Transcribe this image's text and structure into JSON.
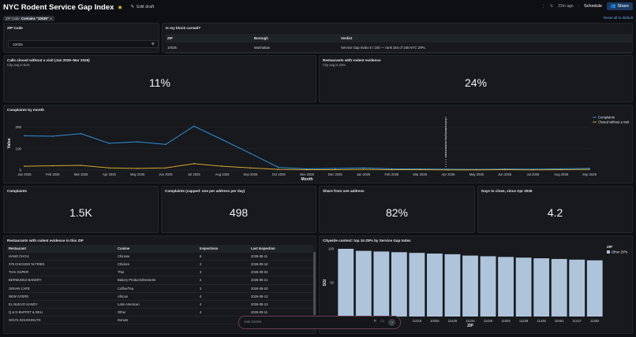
{
  "header": {
    "title": "NYC Rodent Service Gap Index",
    "edit_label": "Edit draft",
    "updated": "22m ago",
    "schedule_label": "Schedule",
    "share_label": "Share"
  },
  "filters": {
    "chip_label": "ZIP Code:",
    "chip_value": "Contains \"10035\"",
    "reset_label": "Reset all to default"
  },
  "zip_panel": {
    "title": "ZIP Code",
    "value": "10035"
  },
  "block_panel": {
    "title": "Is my block cursed?",
    "columns": [
      "ZIP",
      "Borough",
      "Verdict"
    ],
    "rows": [
      [
        "10035",
        "Manhattan",
        "Service Gap Index 5 / 100 — rank 164 of 165 NYC ZIPs."
      ]
    ]
  },
  "calls_panel": {
    "title": "Calls closed without a visit (Jan 2025–Mar 2026)",
    "sub": "City avg is 61%",
    "value": "11%"
  },
  "rest_rate_panel": {
    "title": "Restaurants with rodent evidence",
    "sub": "City avg is 23%",
    "value": "24%"
  },
  "complaints_chart": {
    "title": "Complaints by month",
    "annotation": "Anti-rodent plan announced"
  },
  "kpis": [
    {
      "title": "Complaints",
      "value": "1.5K"
    },
    {
      "title": "Complaints (capped: one per address per day)",
      "value": "498"
    },
    {
      "title": "Share from one address",
      "value": "82%"
    },
    {
      "title": "Days to close, since Apr 2026",
      "value": "4.2"
    }
  ],
  "restaurants": {
    "title": "Restaurants with rodent evidence in this ZIP",
    "columns": [
      "Restaurant",
      "Cuisine",
      "Inspections",
      "Last Inspection"
    ],
    "rows": [
      [
        "HANG CHOU",
        "Chinese",
        "6",
        "2026-08-11"
      ],
      [
        "375 CHICKEN 'N FRIES",
        "Chicken",
        "2",
        "2026-09-10"
      ],
      [
        "THAI SUPER",
        "Thai",
        "3",
        "2026-09-03"
      ],
      [
        "BERMUDEZ BAKERY",
        "Bakery Products/Desserts",
        "2",
        "2026-06-21"
      ],
      [
        "GINIAN CAFE",
        "Coffee/Tea",
        "3",
        "2026-08-20"
      ],
      [
        "NEW IVOIRE",
        "African",
        "4",
        "2026-08-13"
      ],
      [
        "EL NUEVO SANDY",
        "Latin American",
        "4",
        "2026-08-13"
      ],
      [
        "Q & N BUFFET & DELI",
        "Other",
        "4",
        "2026-09-11"
      ],
      [
        "GIGI'S DOUGHNUTS",
        "Donuts",
        "",
        ""
      ]
    ]
  },
  "ask": {
    "placeholder": "Ask Genie"
  },
  "chart_data": [
    {
      "type": "line",
      "title": "Complaints by month",
      "xlabel": "Month",
      "ylabel": "Value",
      "ylim": [
        0,
        250
      ],
      "yticks": [
        0,
        100,
        200
      ],
      "x": [
        "Jan 2025",
        "Feb 2025",
        "Mar 2025",
        "Apr 2025",
        "May 2025",
        "Jun 2025",
        "Jul 2025",
        "Aug 2025",
        "Sep 2025",
        "Oct 2025",
        "Nov 2025",
        "Dec 2025",
        "Jan 2026",
        "Feb 2026",
        "Mar 2026",
        "Apr 2026",
        "May 2026",
        "Jun 2026",
        "Jul 2026",
        "Aug 2026",
        "Sep 2026"
      ],
      "series": [
        {
          "name": "Complaints",
          "color": "#2f8fd6",
          "values": [
            160,
            158,
            170,
            125,
            132,
            120,
            205,
            142,
            78,
            12,
            6,
            8,
            10,
            6,
            5,
            4,
            3,
            5,
            4,
            6,
            8
          ]
        },
        {
          "name": "Closed without a visit",
          "color": "#d6a72f",
          "values": [
            18,
            20,
            22,
            10,
            8,
            10,
            30,
            18,
            10,
            3,
            2,
            2,
            3,
            2,
            2,
            1,
            1,
            2,
            1,
            2,
            3
          ]
        }
      ],
      "legend": "right"
    },
    {
      "type": "bar",
      "title": "Citywide context: top 15 ZIPs by Service Gap Index",
      "xlabel": "ZIP",
      "ylabel": "SGI",
      "ylim": [
        0,
        100
      ],
      "yticks": [
        50,
        100
      ],
      "categories": [
        "",
        "",
        "",
        "",
        "11418",
        "10302",
        "11429",
        "11234",
        "11426",
        "11004",
        "11236",
        "11435",
        "10461",
        "11417",
        "11362"
      ],
      "values": [
        100,
        97,
        96,
        95,
        94,
        93,
        92,
        90,
        89,
        88,
        87,
        86,
        85,
        84,
        83
      ],
      "legend_title": "ZIP",
      "legend_item": "Other ZIPs",
      "color": "#aec4db"
    }
  ]
}
